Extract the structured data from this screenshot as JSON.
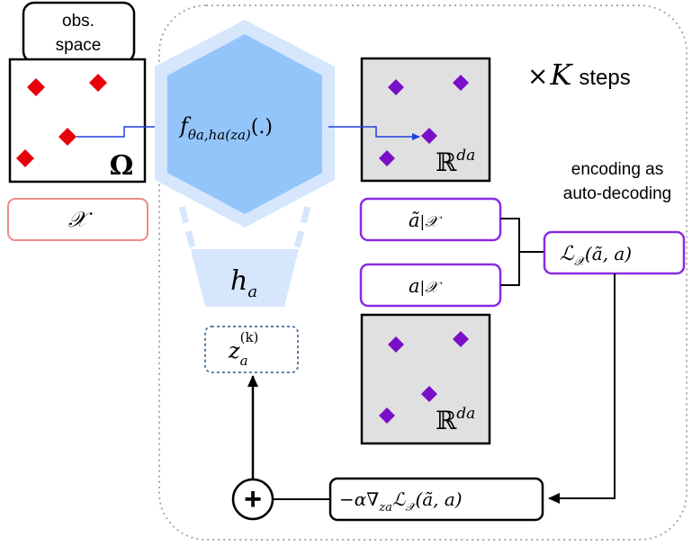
{
  "observation": {
    "tab_label_line1": "obs.",
    "tab_label_line2": "space",
    "domain_symbol": "Ω",
    "set_symbol": "𝒳"
  },
  "network": {
    "function_main": "f",
    "function_sub": "θa,ha(za)",
    "function_args": "(.)",
    "hyper_main": "h",
    "hyper_sub": "a"
  },
  "latent": {
    "main": "z",
    "sub": "a",
    "sup": "(k)"
  },
  "feature_space": {
    "symbol": "ℝ",
    "sup": "da"
  },
  "loop": {
    "times": "×",
    "K": "K",
    "steps": "steps"
  },
  "encoding_note": {
    "line1": "encoding as",
    "line2": "auto-decoding"
  },
  "restricted_pred": {
    "main": "ã",
    "rest": "|𝒳"
  },
  "restricted_true": {
    "main": "a",
    "rest": "|𝒳"
  },
  "loss": {
    "script_L": "ℒ",
    "sub": "𝒳",
    "args": "(ã, a)"
  },
  "update": {
    "prefix": "−α∇",
    "grad_sub": "za",
    "script_L": "ℒ",
    "loss_sub": "𝒳",
    "args": "(ã, a)"
  },
  "plus_symbol": "+",
  "colors": {
    "red_points": "#e8000b",
    "purple_points": "#7a0fc8",
    "purple_border": "#8a2be2",
    "pink_border": "#f08a8a",
    "hex_fill": "#93c5fb",
    "hex_outer": "#d5e6fd",
    "gray_box": "#e0e0e0",
    "blue_arrow": "#1f3fe0",
    "dotted_border": "#5b7ea3"
  }
}
